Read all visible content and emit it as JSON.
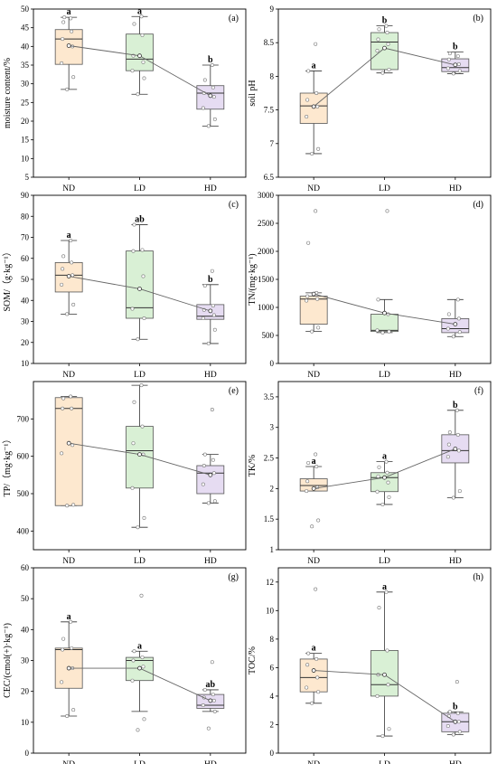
{
  "figure": {
    "box_colors": [
      "#fde8cf",
      "#d9f0d5",
      "#e6dcf2"
    ],
    "box_stroke": "#555555"
  },
  "chart_data": [
    {
      "type": "box",
      "panel": "(a)",
      "ylabel": "moisture content/%",
      "ylim": [
        5,
        50
      ],
      "yticks": [
        5,
        10,
        15,
        20,
        25,
        30,
        35,
        40,
        45,
        50
      ],
      "categories": [
        "ND",
        "LD",
        "HD"
      ],
      "boxes": [
        {
          "q1": 35.2,
          "median": 42.0,
          "q3": 44.5,
          "whisker_low": 28.5,
          "whisker_high": 47.8,
          "mean": 40.2,
          "points": [
            28.5,
            31.8,
            35.5,
            40.0,
            42.0,
            44.0,
            46.5,
            47.5,
            47.8
          ]
        },
        {
          "q1": 33.5,
          "median": 36.6,
          "q3": 43.3,
          "whisker_low": 27.2,
          "whisker_high": 48.0,
          "mean": 37.5,
          "points": [
            27.2,
            31.5,
            33.5,
            35.8,
            37.5,
            43.0,
            46.0,
            48.0
          ]
        },
        {
          "q1": 23.2,
          "median": 27.5,
          "q3": 29.5,
          "whisker_low": 18.7,
          "whisker_high": 35.0,
          "mean": 26.8,
          "points": [
            18.7,
            20.5,
            23.5,
            26.5,
            27.5,
            29.0,
            31.0,
            35.0
          ]
        }
      ],
      "letters": [
        "a",
        "a",
        "b"
      ]
    },
    {
      "type": "box",
      "panel": "(b)",
      "ylabel": "soil pH",
      "ylim": [
        6.5,
        9.0
      ],
      "yticks": [
        6.5,
        7.0,
        7.5,
        8.0,
        8.5,
        9.0
      ],
      "categories": [
        "ND",
        "LD",
        "HD"
      ],
      "boxes": [
        {
          "q1": 7.3,
          "median": 7.56,
          "q3": 7.75,
          "whisker_low": 6.85,
          "whisker_high": 8.08,
          "mean": 7.55,
          "points": [
            6.85,
            6.92,
            7.4,
            7.55,
            7.65,
            7.75,
            8.08,
            8.48
          ]
        },
        {
          "q1": 8.1,
          "median": 8.51,
          "q3": 8.65,
          "whisker_low": 8.05,
          "whisker_high": 8.75,
          "mean": 8.42,
          "points": [
            8.05,
            8.1,
            8.38,
            8.48,
            8.55,
            8.65,
            8.7,
            8.75
          ]
        },
        {
          "q1": 8.07,
          "median": 8.13,
          "q3": 8.26,
          "whisker_low": 8.04,
          "whisker_high": 8.36,
          "mean": 8.17,
          "points": [
            8.04,
            8.08,
            8.12,
            8.18,
            8.25,
            8.3,
            8.34
          ]
        }
      ],
      "letters": [
        "a",
        "b",
        "b"
      ]
    },
    {
      "type": "box",
      "panel": "(c)",
      "ylabel": "SOM/（g·kg⁻¹）",
      "ylim": [
        10,
        90
      ],
      "yticks": [
        10,
        20,
        30,
        40,
        50,
        60,
        70,
        80,
        90
      ],
      "categories": [
        "ND",
        "LD",
        "HD"
      ],
      "boxes": [
        {
          "q1": 44.0,
          "median": 52.0,
          "q3": 58.0,
          "whisker_low": 33.5,
          "whisker_high": 68.5,
          "mean": 51.5,
          "points": [
            33.5,
            38.0,
            47.5,
            52.0,
            55.0,
            58.0,
            61.0,
            68.5
          ]
        },
        {
          "q1": 31.5,
          "median": 36.5,
          "q3": 63.5,
          "whisker_low": 21.5,
          "whisker_high": 76.0,
          "mean": 45.5,
          "points": [
            21.5,
            31.5,
            36.0,
            51.5,
            63.5,
            64.0,
            76.0
          ]
        },
        {
          "q1": 31.0,
          "median": 32.5,
          "q3": 38.0,
          "whisker_low": 19.5,
          "whisker_high": 47.5,
          "mean": 35.0,
          "points": [
            19.5,
            26.0,
            31.5,
            33.0,
            35.5,
            37.5,
            47.0,
            54.0
          ]
        }
      ],
      "letters": [
        "a",
        "ab",
        "b"
      ]
    },
    {
      "type": "box",
      "panel": "(d)",
      "ylabel": "TN/(mg·kg⁻¹)",
      "ylim": [
        0,
        3000
      ],
      "yticks": [
        0,
        500,
        1000,
        1500,
        2000,
        2500,
        3000
      ],
      "categories": [
        "ND",
        "LD",
        "HD"
      ],
      "boxes": [
        {
          "q1": 700,
          "median": 1150,
          "q3": 1200,
          "whisker_low": 570,
          "whisker_high": 1260,
          "mean": 1240,
          "points": [
            570,
            640,
            1120,
            1150,
            1200,
            1260,
            2150,
            2720
          ]
        },
        {
          "q1": 570,
          "median": 590,
          "q3": 880,
          "whisker_low": 550,
          "whisker_high": 1140,
          "mean": 900,
          "points": [
            550,
            570,
            590,
            880,
            1140,
            2720
          ]
        },
        {
          "q1": 550,
          "median": 620,
          "q3": 800,
          "whisker_low": 480,
          "whisker_high": 1140,
          "mean": 700,
          "points": [
            480,
            560,
            620,
            800,
            880,
            1140
          ]
        }
      ],
      "letters": []
    },
    {
      "type": "box",
      "panel": "(e)",
      "ylabel": "TP/（mg·kg⁻¹）",
      "ylim": [
        350,
        800
      ],
      "yticks": [
        400,
        500,
        600,
        700
      ],
      "categories": [
        "ND",
        "LD",
        "HD"
      ],
      "boxes": [
        {
          "q1": 468,
          "median": 728,
          "q3": 757,
          "whisker_low": 468,
          "whisker_high": 760,
          "mean": 635,
          "points": [
            468,
            470,
            608,
            630,
            728,
            728,
            755,
            760
          ]
        },
        {
          "q1": 515,
          "median": 615,
          "q3": 680,
          "whisker_low": 410,
          "whisker_high": 790,
          "mean": 605,
          "points": [
            410,
            435,
            515,
            605,
            635,
            680,
            745,
            790
          ]
        },
        {
          "q1": 500,
          "median": 555,
          "q3": 575,
          "whisker_low": 475,
          "whisker_high": 605,
          "mean": 550,
          "points": [
            475,
            480,
            525,
            555,
            575,
            590,
            605,
            725
          ]
        }
      ],
      "letters": []
    },
    {
      "type": "box",
      "panel": "(f)",
      "ylabel": "TK/%",
      "ylim": [
        1.0,
        3.75
      ],
      "yticks": [
        1.0,
        1.5,
        2.0,
        2.5,
        3.0,
        3.5
      ],
      "categories": [
        "ND",
        "LD",
        "HD"
      ],
      "boxes": [
        {
          "q1": 1.96,
          "median": 2.05,
          "q3": 2.16,
          "whisker_low": 1.96,
          "whisker_high": 2.36,
          "mean": 2.0,
          "points": [
            1.38,
            1.48,
            1.96,
            2.02,
            2.12,
            2.36,
            2.42,
            2.56
          ]
        },
        {
          "q1": 1.95,
          "median": 2.18,
          "q3": 2.26,
          "whisker_low": 1.74,
          "whisker_high": 2.44,
          "mean": 2.18,
          "points": [
            1.74,
            1.86,
            1.95,
            2.1,
            2.2,
            2.26,
            2.35,
            2.44
          ]
        },
        {
          "q1": 2.42,
          "median": 2.62,
          "q3": 2.88,
          "whisker_low": 1.85,
          "whisker_high": 3.28,
          "mean": 2.65,
          "points": [
            1.85,
            1.96,
            2.52,
            2.62,
            2.72,
            2.88,
            2.92,
            3.28
          ]
        }
      ],
      "letters": [
        "a",
        "a",
        "b"
      ]
    },
    {
      "type": "box",
      "panel": "(g)",
      "ylabel": "CEC/(cmol(+)·kg⁻¹)",
      "ylim": [
        0,
        60
      ],
      "yticks": [
        0,
        10,
        20,
        30,
        40,
        50,
        60
      ],
      "categories": [
        "ND",
        "LD",
        "HD"
      ],
      "boxes": [
        {
          "q1": 21.0,
          "median": 33.5,
          "q3": 34.0,
          "whisker_low": 12.0,
          "whisker_high": 42.5,
          "mean": 27.5,
          "points": [
            12.0,
            14.0,
            23.0,
            27.5,
            33.5,
            34.0,
            37.0,
            42.5
          ]
        },
        {
          "q1": 23.5,
          "median": 30.0,
          "q3": 31.0,
          "whisker_low": 13.5,
          "whisker_high": 33.0,
          "mean": 27.5,
          "points": [
            7.5,
            11.0,
            23.5,
            28.0,
            30.0,
            31.0,
            33.0,
            51.0
          ]
        },
        {
          "q1": 14.5,
          "median": 15.5,
          "q3": 19.0,
          "whisker_low": 13.5,
          "whisker_high": 20.5,
          "mean": 17.0,
          "points": [
            8.0,
            13.5,
            15.5,
            17.0,
            18.0,
            19.0,
            20.5,
            29.5
          ]
        }
      ],
      "letters": [
        "a",
        "a",
        "ab"
      ]
    },
    {
      "type": "box",
      "panel": "(h)",
      "ylabel": "TOC/%",
      "ylim": [
        0,
        13
      ],
      "yticks": [
        0,
        2,
        4,
        6,
        8,
        10,
        12
      ],
      "categories": [
        "ND",
        "LD",
        "HD"
      ],
      "boxes": [
        {
          "q1": 4.3,
          "median": 5.3,
          "q3": 6.6,
          "whisker_low": 3.5,
          "whisker_high": 7.0,
          "mean": 5.8,
          "points": [
            3.5,
            4.3,
            4.6,
            5.3,
            6.2,
            6.6,
            7.0,
            11.5
          ]
        },
        {
          "q1": 4.0,
          "median": 4.8,
          "q3": 7.2,
          "whisker_low": 1.2,
          "whisker_high": 11.3,
          "mean": 5.5,
          "points": [
            1.2,
            1.7,
            4.0,
            4.8,
            5.5,
            7.2,
            10.2,
            11.3
          ]
        },
        {
          "q1": 1.5,
          "median": 2.2,
          "q3": 2.8,
          "whisker_low": 1.3,
          "whisker_high": 2.9,
          "mean": 2.2,
          "points": [
            1.3,
            1.5,
            1.9,
            2.2,
            2.6,
            2.8,
            2.9,
            5.0
          ]
        }
      ],
      "letters": [
        "a",
        "a",
        "b"
      ]
    }
  ]
}
